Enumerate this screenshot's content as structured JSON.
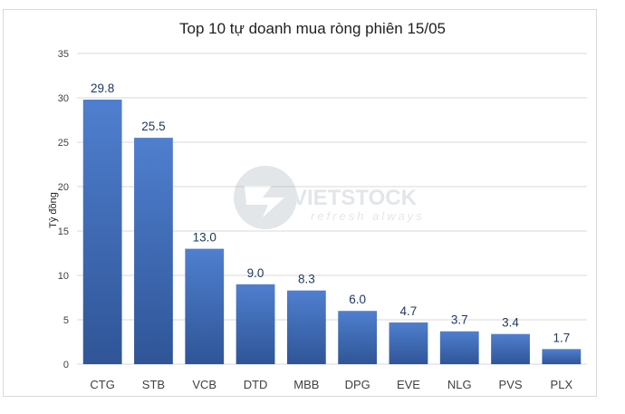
{
  "chart_data": {
    "type": "bar",
    "title": "Top 10 tự doanh mua ròng phiên 15/05",
    "xlabel": "",
    "ylabel": "Tỷ đồng",
    "categories": [
      "CTG",
      "STB",
      "VCB",
      "DTD",
      "MBB",
      "DPG",
      "EVE",
      "NLG",
      "PVS",
      "PLX"
    ],
    "values": [
      29.8,
      25.5,
      13.0,
      9.0,
      8.3,
      6.0,
      4.7,
      3.7,
      3.4,
      1.7
    ],
    "data_labels": [
      "29.8",
      "25.5",
      "13.0",
      "9.0",
      "8.3",
      "6.0",
      "4.7",
      "3.7",
      "3.4",
      "1.7"
    ],
    "ylim": [
      0,
      35
    ],
    "yticks": [
      0,
      5,
      10,
      15,
      20,
      25,
      30,
      35
    ],
    "grid": true,
    "legend": "none",
    "colors": {
      "bar_top": "#4f7fcf",
      "bar_bottom": "#2f5597",
      "grid": "#d9d9d9",
      "label": "#1f3864"
    }
  },
  "watermark": {
    "brand": "VIETSTOCK",
    "tagline": "refresh always"
  }
}
